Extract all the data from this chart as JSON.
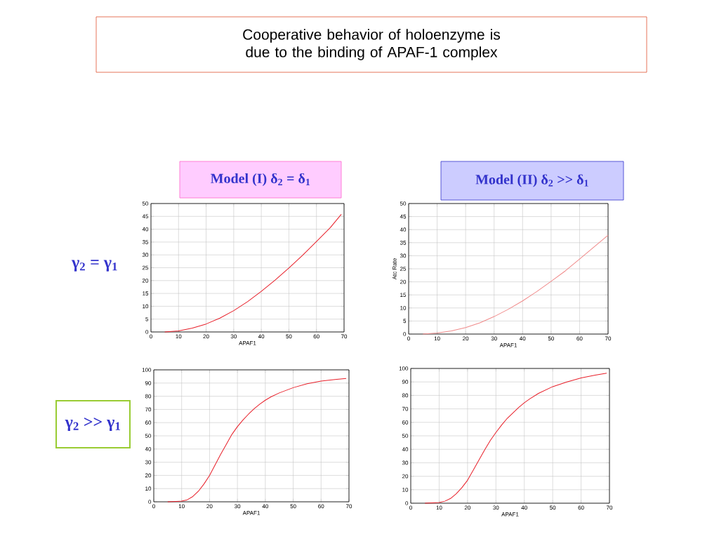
{
  "chart_data": [
    {
      "type": "line",
      "title": "Model (I) δ$_{2}$ = δ$_{1}$",
      "annotations": [
        "Cooperative behavior of holoenzyme is due to the binding of APAF-1 complex",
        "γ$_{2}$ = γ$_{1}$"
      ],
      "xlabel": "APAF1",
      "x": [
        5,
        10,
        15,
        20,
        25,
        30,
        35,
        40,
        45,
        50,
        55,
        60,
        65,
        69
      ],
      "series": [
        {
          "color": "#e8202a",
          "values": [
            0,
            0.4,
            1.5,
            3.1,
            5.4,
            8.3,
            11.8,
            15.8,
            20.2,
            24.9,
            29.9,
            35.2,
            40.6,
            45.8
          ]
        }
      ],
      "xlim": [
        0,
        70
      ],
      "ylim": [
        0,
        50
      ],
      "xticks": [
        0,
        10,
        20,
        30,
        40,
        50,
        60,
        70
      ],
      "yticks": [
        0,
        5,
        10,
        15,
        20,
        25,
        30,
        35,
        40,
        45,
        50
      ],
      "grid": true,
      "marker": "none",
      "line_style": "solid"
    },
    {
      "type": "line",
      "title": "Model (II) δ$_{2}$ >> δ$_{1}$",
      "xlabel": "APAF1",
      "ylabel": "Atc Rate",
      "x": [
        5,
        10,
        15,
        20,
        25,
        30,
        35,
        40,
        45,
        50,
        55,
        60,
        65,
        70
      ],
      "series": [
        {
          "color": "#f08a8a",
          "values": [
            0,
            0.4,
            1.2,
            2.5,
            4.3,
            6.7,
            9.5,
            12.7,
            16.3,
            20.2,
            24.2,
            28.7,
            33.3,
            37.9
          ]
        }
      ],
      "xlim": [
        0,
        70
      ],
      "ylim": [
        0,
        50
      ],
      "xticks": [
        0,
        10,
        20,
        30,
        40,
        50,
        60,
        70
      ],
      "yticks": [
        0,
        5,
        10,
        15,
        20,
        25,
        30,
        35,
        40,
        45,
        50
      ],
      "grid": true,
      "marker": "none",
      "line_style": "solid"
    },
    {
      "type": "line",
      "annotations": [
        "γ$_{2}$ >> γ$_{1}$"
      ],
      "xlabel": "APAF1",
      "x": [
        5,
        10,
        12,
        14,
        16,
        18,
        20,
        22,
        24,
        26,
        28,
        30,
        32,
        34,
        36,
        38,
        40,
        42,
        45,
        50,
        55,
        60,
        65,
        69
      ],
      "series": [
        {
          "color": "#e8202a",
          "values": [
            0,
            0.5,
            1.5,
            4,
            8,
            13.5,
            20,
            28,
            36,
            43.5,
            51,
            57,
            62,
            66.5,
            70.5,
            74,
            77,
            79.5,
            82.5,
            86.5,
            89.5,
            91.5,
            92.7,
            93.5
          ]
        }
      ],
      "xlim": [
        0,
        70
      ],
      "ylim": [
        0,
        100
      ],
      "xticks": [
        0,
        10,
        20,
        30,
        40,
        50,
        60,
        70
      ],
      "yticks": [
        0,
        10,
        20,
        30,
        40,
        50,
        60,
        70,
        80,
        90,
        100
      ],
      "grid": true,
      "marker": "none",
      "line_style": "solid"
    },
    {
      "type": "line",
      "xlabel": "APAF1",
      "x": [
        5,
        10,
        12,
        14,
        16,
        18,
        20,
        22,
        24,
        26,
        28,
        30,
        32,
        34,
        36,
        38,
        40,
        42,
        45,
        50,
        55,
        60,
        65,
        69
      ],
      "series": [
        {
          "color": "#e8202a",
          "values": [
            0,
            0.5,
            1.5,
            3.5,
            7,
            11.5,
            17,
            24.5,
            32,
            39.5,
            46.5,
            52.5,
            58,
            63,
            67,
            71,
            74.5,
            77.5,
            81.5,
            86.5,
            90,
            93,
            95,
            96.5
          ]
        }
      ],
      "xlim": [
        0,
        70
      ],
      "ylim": [
        0,
        100
      ],
      "xticks": [
        0,
        10,
        20,
        30,
        40,
        50,
        60,
        70
      ],
      "yticks": [
        0,
        10,
        20,
        30,
        40,
        50,
        60,
        70,
        80,
        90,
        100
      ],
      "grid": true,
      "marker": "none",
      "line_style": "solid"
    }
  ]
}
